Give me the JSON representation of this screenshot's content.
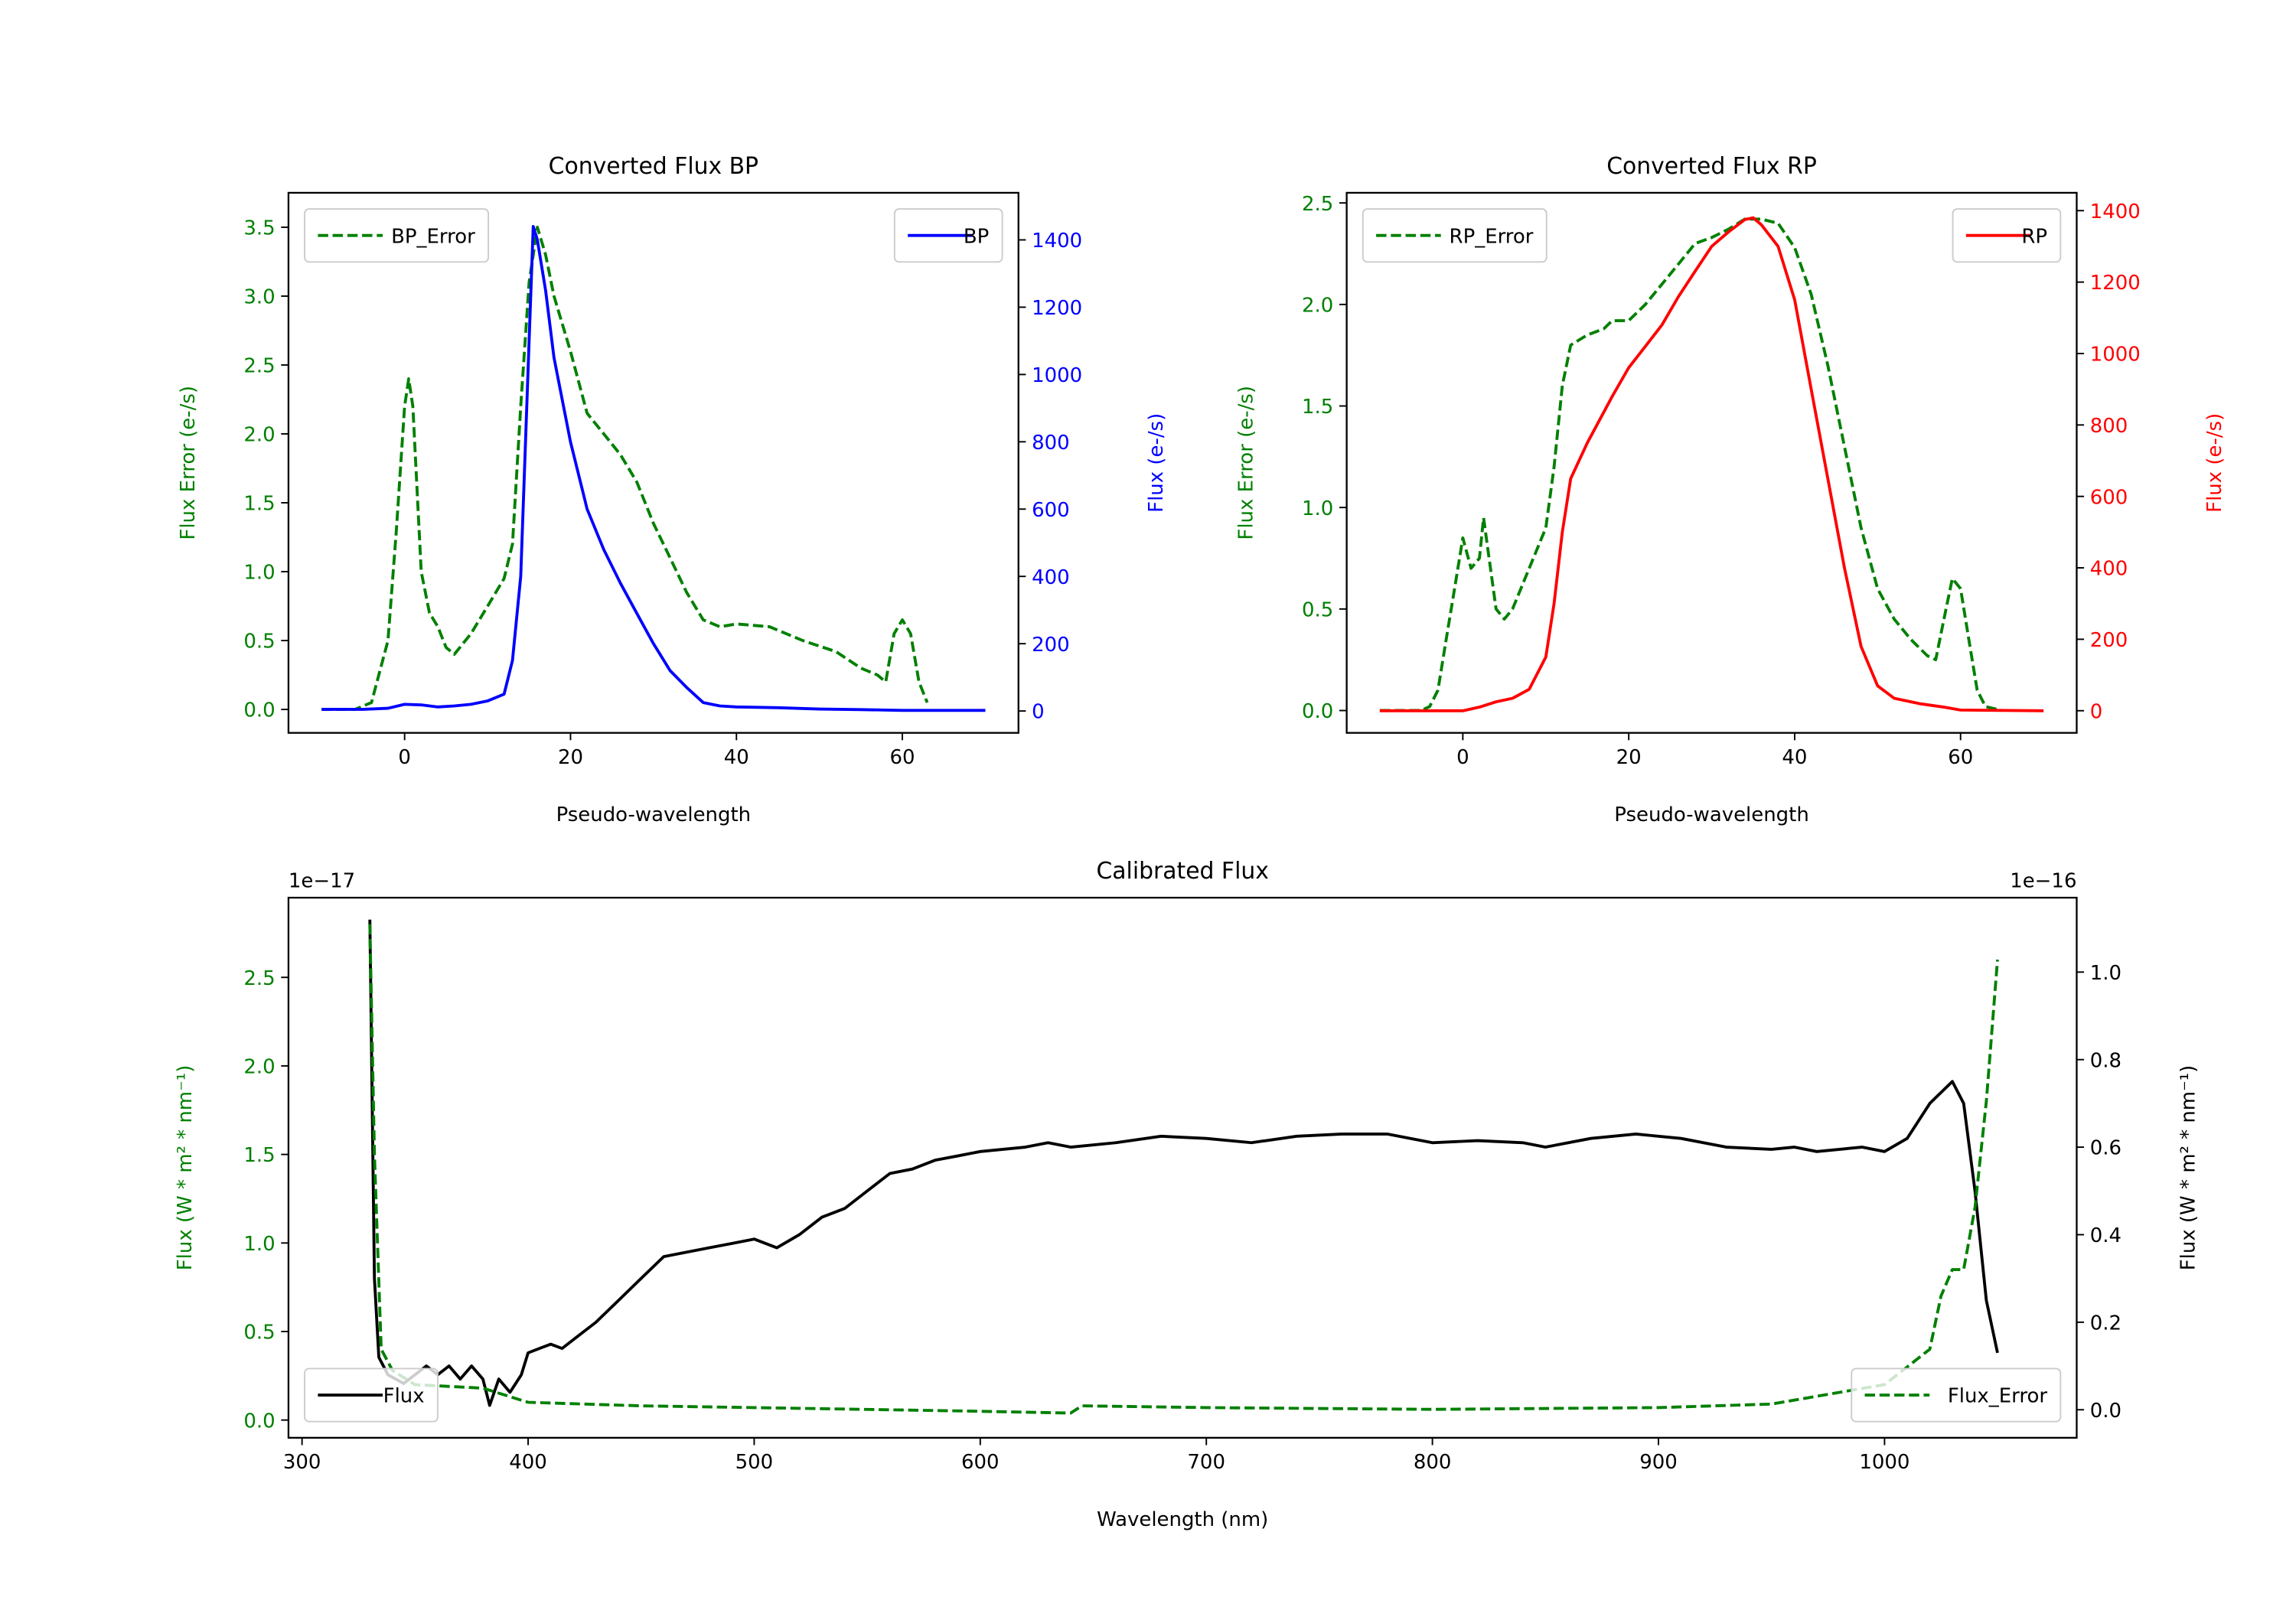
{
  "colors": {
    "green": "#008000",
    "blue": "#0000ff",
    "red": "#ff0000",
    "black": "#000000"
  },
  "chart_data": [
    {
      "type": "line",
      "title": "Converted Flux BP",
      "xlabel": "Pseudo-wavelength",
      "ylabel_left": "Flux Error (e-/s)",
      "ylabel_right": "Flux (e-/s)",
      "xlim": [
        -14,
        74
      ],
      "xticks": [
        0,
        20,
        40,
        60
      ],
      "ylim_left": [
        -0.17,
        3.75
      ],
      "yticks_left": [
        "0.0",
        "0.5",
        "1.0",
        "1.5",
        "2.0",
        "2.5",
        "3.0",
        "3.5"
      ],
      "ylim_right": [
        -65,
        1540
      ],
      "yticks_right": [
        "0",
        "200",
        "400",
        "600",
        "800",
        "1000",
        "1200",
        "1400"
      ],
      "legend_left": {
        "label": "BP_Error",
        "placement": "upper-left"
      },
      "legend_right": {
        "label": "BP",
        "placement": "upper-right"
      },
      "series": [
        {
          "name": "BP_Error",
          "axis": "left",
          "color": "#008000",
          "style": "dashed",
          "x": [
            -10,
            -6,
            -4,
            -2,
            -1,
            0,
            0.5,
            1,
            2,
            3,
            4,
            5,
            6,
            8,
            10,
            12,
            13,
            14,
            15,
            16,
            17,
            18,
            20,
            22,
            24,
            26,
            28,
            30,
            32,
            34,
            36,
            38,
            40,
            44,
            48,
            52,
            55,
            57,
            58,
            59,
            60,
            61,
            62,
            63
          ],
          "y": [
            0,
            0,
            0.05,
            0.5,
            1.3,
            2.2,
            2.4,
            2.2,
            1.0,
            0.7,
            0.6,
            0.45,
            0.4,
            0.55,
            0.75,
            0.95,
            1.2,
            2.2,
            3.1,
            3.5,
            3.3,
            3.0,
            2.6,
            2.15,
            2.0,
            1.85,
            1.65,
            1.35,
            1.1,
            0.85,
            0.65,
            0.6,
            0.62,
            0.6,
            0.5,
            0.42,
            0.3,
            0.25,
            0.2,
            0.55,
            0.65,
            0.55,
            0.2,
            0.05
          ]
        },
        {
          "name": "BP",
          "axis": "right",
          "color": "#0000ff",
          "style": "solid",
          "x": [
            -10,
            -5,
            -2,
            0,
            2,
            4,
            6,
            8,
            10,
            12,
            13,
            14,
            15,
            15.5,
            16,
            17,
            18,
            20,
            22,
            24,
            26,
            28,
            30,
            32,
            34,
            36,
            38,
            40,
            45,
            50,
            55,
            60,
            65,
            70
          ],
          "y": [
            5,
            5,
            8,
            20,
            18,
            12,
            15,
            20,
            30,
            50,
            150,
            400,
            1100,
            1440,
            1400,
            1250,
            1050,
            800,
            600,
            480,
            380,
            290,
            200,
            120,
            70,
            25,
            15,
            12,
            10,
            6,
            4,
            2,
            2,
            2
          ]
        }
      ]
    },
    {
      "type": "line",
      "title": "Converted Flux RP",
      "xlabel": "Pseudo-wavelength",
      "ylabel_left": "Flux Error (e-/s)",
      "ylabel_right": "Flux (e-/s)",
      "xlim": [
        -14,
        74
      ],
      "xticks": [
        0,
        20,
        40,
        60
      ],
      "ylim_left": [
        -0.11,
        2.55
      ],
      "yticks_left": [
        "0.0",
        "0.5",
        "1.0",
        "1.5",
        "2.0",
        "2.5"
      ],
      "ylim_right": [
        -62,
        1450
      ],
      "yticks_right": [
        "0",
        "200",
        "400",
        "600",
        "800",
        "1000",
        "1200",
        "1400"
      ],
      "legend_left": {
        "label": "RP_Error",
        "placement": "upper-left"
      },
      "legend_right": {
        "label": "RP",
        "placement": "upper-right"
      },
      "series": [
        {
          "name": "RP_Error",
          "axis": "left",
          "color": "#008000",
          "style": "dashed",
          "x": [
            -10,
            -5,
            -4,
            -3,
            -2,
            -1,
            0,
            1,
            2,
            2.5,
            3,
            4,
            5,
            6,
            8,
            10,
            11,
            12,
            13,
            15,
            17,
            18,
            20,
            22,
            24,
            26,
            28,
            30,
            32,
            34,
            36,
            38,
            40,
            42,
            44,
            46,
            48,
            50,
            52,
            54,
            56,
            57,
            58,
            59,
            60,
            61,
            62,
            63,
            65
          ],
          "y": [
            0,
            0,
            0.02,
            0.1,
            0.35,
            0.6,
            0.85,
            0.7,
            0.75,
            0.95,
            0.8,
            0.5,
            0.45,
            0.5,
            0.7,
            0.9,
            1.2,
            1.6,
            1.8,
            1.85,
            1.88,
            1.92,
            1.92,
            2.0,
            2.1,
            2.2,
            2.3,
            2.33,
            2.37,
            2.42,
            2.42,
            2.4,
            2.28,
            2.05,
            1.7,
            1.3,
            0.9,
            0.6,
            0.45,
            0.35,
            0.27,
            0.25,
            0.45,
            0.65,
            0.6,
            0.35,
            0.1,
            0.02,
            0
          ]
        },
        {
          "name": "RP",
          "axis": "right",
          "color": "#ff0000",
          "style": "solid",
          "x": [
            -10,
            0,
            2,
            4,
            6,
            8,
            10,
            11,
            12,
            13,
            15,
            18,
            20,
            22,
            24,
            26,
            28,
            30,
            32,
            34,
            35,
            36,
            38,
            40,
            42,
            44,
            46,
            48,
            50,
            52,
            55,
            58,
            60,
            70
          ],
          "y": [
            0,
            0,
            10,
            25,
            35,
            60,
            150,
            300,
            500,
            650,
            750,
            880,
            960,
            1020,
            1080,
            1160,
            1230,
            1300,
            1340,
            1375,
            1380,
            1360,
            1300,
            1150,
            900,
            650,
            400,
            180,
            70,
            35,
            20,
            10,
            2,
            0
          ]
        }
      ]
    },
    {
      "type": "line",
      "title": "Calibrated Flux",
      "xlabel": "Wavelength (nm)",
      "ylabel_left": "Flux (W * m² * nm⁻¹)",
      "ylabel_right": "Flux (W * m² * nm⁻¹)",
      "offset_left": "1e−17",
      "offset_right": "1e−16",
      "xlim": [
        294,
        1085
      ],
      "xticks": [
        300,
        400,
        500,
        600,
        700,
        800,
        900,
        1000
      ],
      "ylim_left": [
        -0.1,
        2.95
      ],
      "yticks_left": [
        "0.0",
        "0.5",
        "1.0",
        "1.5",
        "2.0",
        "2.5"
      ],
      "ylim_right": [
        -0.064,
        1.17
      ],
      "yticks_right": [
        "0.0",
        "0.2",
        "0.4",
        "0.6",
        "0.8",
        "1.0"
      ],
      "legend_left": {
        "label": "Flux",
        "placement": "lower-left"
      },
      "legend_right": {
        "label": "Flux_Error",
        "placement": "lower-right"
      },
      "series": [
        {
          "name": "Flux",
          "axis": "right",
          "color": "#000000",
          "style": "solid",
          "x": [
            330,
            332,
            334,
            338,
            345,
            355,
            360,
            365,
            370,
            375,
            380,
            383,
            387,
            392,
            397,
            400,
            405,
            410,
            415,
            420,
            430,
            440,
            450,
            460,
            470,
            480,
            490,
            500,
            510,
            520,
            530,
            540,
            550,
            560,
            570,
            580,
            590,
            600,
            620,
            630,
            640,
            660,
            680,
            700,
            720,
            740,
            760,
            780,
            800,
            820,
            840,
            850,
            870,
            890,
            910,
            930,
            950,
            960,
            970,
            990,
            1000,
            1010,
            1020,
            1030,
            1035,
            1040,
            1045,
            1050
          ],
          "y": [
            1.12,
            0.3,
            0.12,
            0.08,
            0.06,
            0.1,
            0.08,
            0.1,
            0.07,
            0.1,
            0.07,
            0.01,
            0.07,
            0.04,
            0.08,
            0.13,
            0.14,
            0.15,
            0.14,
            0.16,
            0.2,
            0.25,
            0.3,
            0.35,
            0.36,
            0.37,
            0.38,
            0.39,
            0.37,
            0.4,
            0.44,
            0.46,
            0.5,
            0.54,
            0.55,
            0.57,
            0.58,
            0.59,
            0.6,
            0.61,
            0.6,
            0.61,
            0.625,
            0.62,
            0.61,
            0.625,
            0.63,
            0.63,
            0.61,
            0.615,
            0.61,
            0.6,
            0.62,
            0.63,
            0.62,
            0.6,
            0.595,
            0.6,
            0.59,
            0.6,
            0.59,
            0.62,
            0.7,
            0.75,
            0.7,
            0.5,
            0.25,
            0.13
          ]
        },
        {
          "name": "Flux_Error",
          "axis": "left",
          "color": "#008000",
          "style": "dashed",
          "x": [
            330,
            332,
            335,
            340,
            350,
            380,
            400,
            450,
            500,
            600,
            640,
            645,
            700,
            800,
            900,
            950,
            1000,
            1010,
            1020,
            1025,
            1030,
            1035,
            1040,
            1045,
            1050
          ],
          "y": [
            2.8,
            1.5,
            0.4,
            0.28,
            0.2,
            0.18,
            0.1,
            0.08,
            0.07,
            0.05,
            0.04,
            0.08,
            0.07,
            0.06,
            0.07,
            0.09,
            0.2,
            0.3,
            0.4,
            0.7,
            0.85,
            0.85,
            1.2,
            1.8,
            2.6
          ]
        }
      ]
    }
  ]
}
